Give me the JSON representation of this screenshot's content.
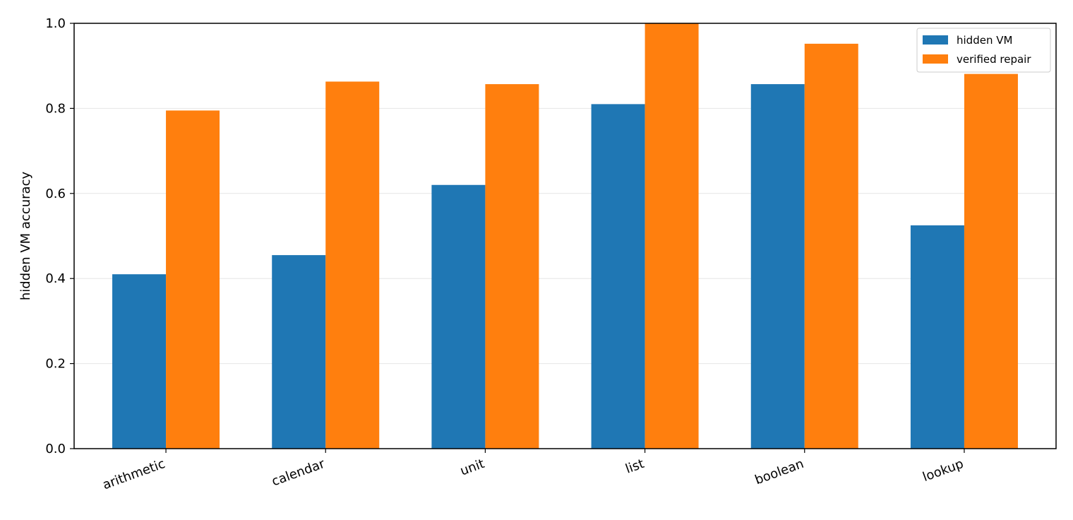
{
  "chart_data": {
    "type": "bar",
    "title": "",
    "xlabel": "",
    "ylabel": "hidden VM accuracy",
    "ylim": [
      0,
      1.0
    ],
    "yticks": [
      "0.0",
      "0.2",
      "0.4",
      "0.6",
      "0.8",
      "1.0"
    ],
    "grid": "horizontal, light",
    "legend_position": "top-right",
    "categories": [
      "arithmetic",
      "calendar",
      "unit",
      "list",
      "boolean",
      "lookup"
    ],
    "series": [
      {
        "name": "hidden VM",
        "color": "#1f77b4",
        "values": [
          0.41,
          0.455,
          0.62,
          0.81,
          0.857,
          0.525
        ]
      },
      {
        "name": "verified repair",
        "color": "#ff7f0e",
        "values": [
          0.795,
          0.863,
          0.857,
          1.0,
          0.952,
          0.881
        ]
      }
    ]
  }
}
